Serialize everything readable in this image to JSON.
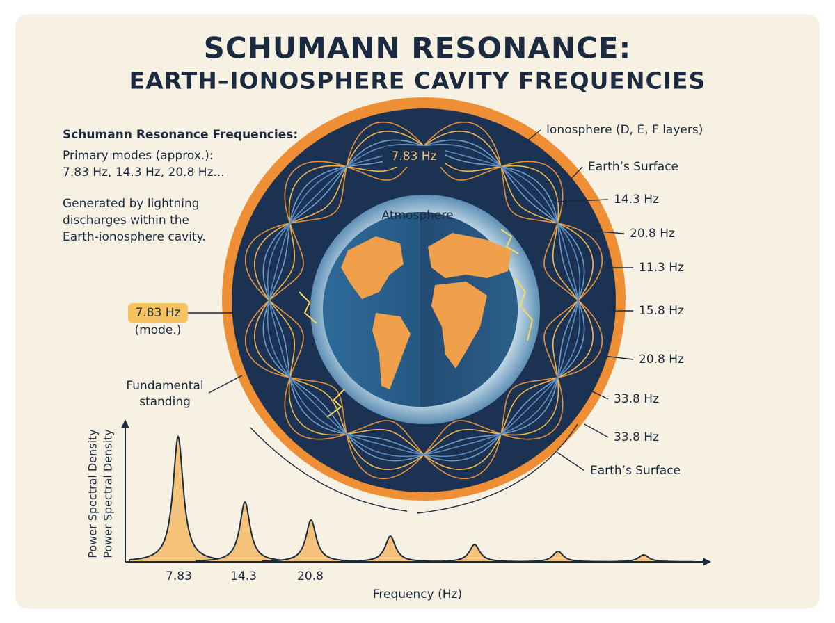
{
  "header": {
    "title": "SCHUMANN RESONANCE:",
    "subtitle": "EARTH–IONOSPHERE CAVITY FREQUENCIES"
  },
  "info": {
    "heading": "Schumann Resonance Frequencies:",
    "modes_label": "Primary modes (approx.):",
    "modes": "7.83 Hz, 14.3 Hz, 20.8 Hz...",
    "description": [
      "Generated by lightning",
      "discharges within the",
      "Earth-ionosphere cavity."
    ]
  },
  "diagram": {
    "top_mode": "7.83 Hz",
    "atmosphere": "Atmosphere",
    "badge": "7.83 Hz",
    "badge_note": "(mode.)",
    "fundamental": [
      "Fundamental",
      "standing"
    ],
    "right_labels": [
      "Ionosphere (D, E, F layers)",
      "Earth’s Surface",
      "14.3 Hz",
      "20.8 Hz",
      "11.3 Hz",
      "15.8 Hz",
      "20.8 Hz",
      "33.8 Hz",
      "33.8 Hz",
      "Earth’s Surface"
    ]
  },
  "spectrum": {
    "y_labels": [
      "Power Spectral Density",
      "Power Spectral Density"
    ],
    "x_label": "Frequency (Hz)",
    "x_ticks": [
      7.83,
      14.3,
      20.8
    ]
  }
}
